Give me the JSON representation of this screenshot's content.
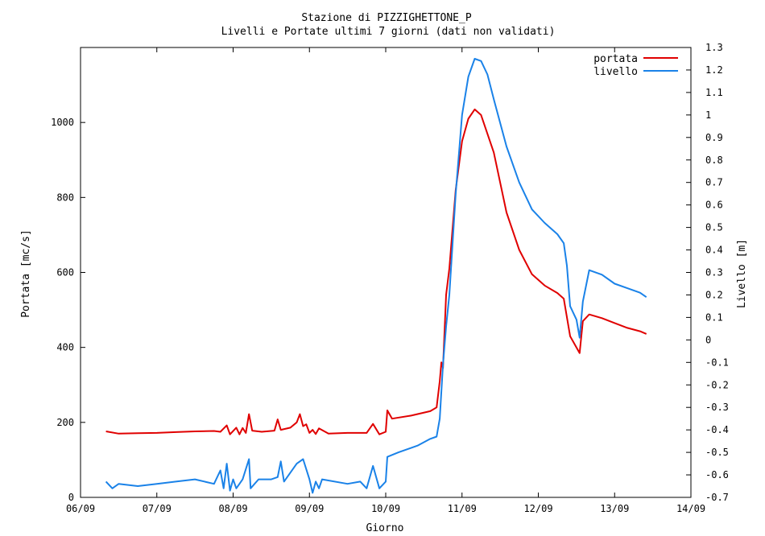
{
  "chart_data": {
    "type": "line",
    "title": "Stazione di PIZZIGHETTONE_P",
    "subtitle": "Livelli e Portate ultimi 7 giorni (dati non validati)",
    "xlabel": "Giorno",
    "ylabel": "Portata [mc/s]",
    "y2label": "Livello [m]",
    "x_ticks": [
      "06/09",
      "07/09",
      "08/09",
      "09/09",
      "10/09",
      "11/09",
      "12/09",
      "13/09",
      "14/09"
    ],
    "xlim": [
      "06/09 00:00",
      "14/09 00:00"
    ],
    "ylim": [
      0,
      1200
    ],
    "y_ticks": [
      0,
      200,
      400,
      600,
      800,
      1000
    ],
    "y2lim": [
      -0.7,
      1.3
    ],
    "y2_ticks": [
      "-0.7",
      "-0.6",
      "-0.5",
      "-0.4",
      "-0.3",
      "-0.2",
      "-0.1",
      "0",
      "0.1",
      "0.2",
      "0.3",
      "0.4",
      "0.5",
      "0.6",
      "0.7",
      "0.8",
      "0.9",
      "1",
      "1.1",
      "1.2",
      "1.3"
    ],
    "grid": false,
    "legend_position": "top-right",
    "series": [
      {
        "name": "portata",
        "axis": "left",
        "color": "#e00000",
        "unit": "mc/s",
        "points": [
          [
            "06/09 08:00",
            176
          ],
          [
            "06/09 12:00",
            170
          ],
          [
            "06/09 18:00",
            171
          ],
          [
            "07/09 00:00",
            172
          ],
          [
            "07/09 06:00",
            174
          ],
          [
            "07/09 12:00",
            176
          ],
          [
            "07/09 18:00",
            177
          ],
          [
            "07/09 20:00",
            175
          ],
          [
            "07/09 22:00",
            192
          ],
          [
            "07/09 23:00",
            168
          ],
          [
            "08/09 01:00",
            186
          ],
          [
            "08/09 02:00",
            168
          ],
          [
            "08/09 03:00",
            185
          ],
          [
            "08/09 04:00",
            172
          ],
          [
            "08/09 05:00",
            222
          ],
          [
            "08/09 06:00",
            178
          ],
          [
            "08/09 09:00",
            175
          ],
          [
            "08/09 13:00",
            178
          ],
          [
            "08/09 14:00",
            208
          ],
          [
            "08/09 15:00",
            180
          ],
          [
            "08/09 18:00",
            186
          ],
          [
            "08/09 20:00",
            200
          ],
          [
            "08/09 21:00",
            222
          ],
          [
            "08/09 22:00",
            190
          ],
          [
            "08/09 23:00",
            195
          ],
          [
            "09/09 00:00",
            172
          ],
          [
            "09/09 01:00",
            180
          ],
          [
            "09/09 02:00",
            169
          ],
          [
            "09/09 03:00",
            184
          ],
          [
            "09/09 06:00",
            170
          ],
          [
            "09/09 12:00",
            172
          ],
          [
            "09/09 18:00",
            172
          ],
          [
            "09/09 20:00",
            196
          ],
          [
            "09/09 22:00",
            168
          ],
          [
            "10/09 00:00",
            175
          ],
          [
            "10/09 00:30",
            232
          ],
          [
            "10/09 02:00",
            210
          ],
          [
            "10/09 08:00",
            218
          ],
          [
            "10/09 14:00",
            230
          ],
          [
            "10/09 16:00",
            240
          ],
          [
            "10/09 17:00",
            310
          ],
          [
            "10/09 17:30",
            360
          ],
          [
            "10/09 18:00",
            345
          ],
          [
            "10/09 19:00",
            540
          ],
          [
            "10/09 20:00",
            610
          ],
          [
            "10/09 22:00",
            820
          ],
          [
            "11/09 00:00",
            950
          ],
          [
            "11/09 02:00",
            1010
          ],
          [
            "11/09 04:00",
            1035
          ],
          [
            "11/09 06:00",
            1020
          ],
          [
            "11/09 10:00",
            920
          ],
          [
            "11/09 14:00",
            760
          ],
          [
            "11/09 18:00",
            660
          ],
          [
            "11/09 22:00",
            595
          ],
          [
            "12/09 02:00",
            565
          ],
          [
            "12/09 06:00",
            545
          ],
          [
            "12/09 08:00",
            530
          ],
          [
            "12/09 10:00",
            430
          ],
          [
            "12/09 13:00",
            385
          ],
          [
            "12/09 14:00",
            470
          ],
          [
            "12/09 16:00",
            488
          ],
          [
            "12/09 20:00",
            478
          ],
          [
            "13/09 00:00",
            465
          ],
          [
            "13/09 04:00",
            452
          ],
          [
            "13/09 08:00",
            443
          ],
          [
            "13/09 10:00",
            436
          ]
        ]
      },
      {
        "name": "livello",
        "axis": "right",
        "color": "#1a82e8",
        "unit": "m",
        "points": [
          [
            "06/09 08:00",
            -0.63
          ],
          [
            "06/09 10:00",
            -0.66
          ],
          [
            "06/09 12:00",
            -0.64
          ],
          [
            "06/09 18:00",
            -0.65
          ],
          [
            "07/09 00:00",
            -0.64
          ],
          [
            "07/09 06:00",
            -0.63
          ],
          [
            "07/09 12:00",
            -0.62
          ],
          [
            "07/09 18:00",
            -0.64
          ],
          [
            "07/09 20:00",
            -0.58
          ],
          [
            "07/09 21:00",
            -0.66
          ],
          [
            "07/09 22:00",
            -0.55
          ],
          [
            "07/09 23:00",
            -0.67
          ],
          [
            "08/09 00:00",
            -0.62
          ],
          [
            "08/09 01:00",
            -0.66
          ],
          [
            "08/09 02:00",
            -0.64
          ],
          [
            "08/09 03:00",
            -0.62
          ],
          [
            "08/09 05:00",
            -0.53
          ],
          [
            "08/09 05:30",
            -0.66
          ],
          [
            "08/09 08:00",
            -0.62
          ],
          [
            "08/09 12:00",
            -0.62
          ],
          [
            "08/09 14:00",
            -0.61
          ],
          [
            "08/09 15:00",
            -0.54
          ],
          [
            "08/09 16:00",
            -0.63
          ],
          [
            "08/09 20:00",
            -0.55
          ],
          [
            "08/09 22:00",
            -0.53
          ],
          [
            "09/09 00:00",
            -0.62
          ],
          [
            "09/09 01:00",
            -0.68
          ],
          [
            "09/09 02:00",
            -0.63
          ],
          [
            "09/09 03:00",
            -0.66
          ],
          [
            "09/09 04:00",
            -0.62
          ],
          [
            "09/09 12:00",
            -0.64
          ],
          [
            "09/09 16:00",
            -0.63
          ],
          [
            "09/09 18:00",
            -0.66
          ],
          [
            "09/09 20:00",
            -0.56
          ],
          [
            "09/09 22:00",
            -0.66
          ],
          [
            "10/09 00:00",
            -0.63
          ],
          [
            "10/09 00:30",
            -0.52
          ],
          [
            "10/09 04:00",
            -0.5
          ],
          [
            "10/09 10:00",
            -0.47
          ],
          [
            "10/09 14:00",
            -0.44
          ],
          [
            "10/09 16:00",
            -0.43
          ],
          [
            "10/09 17:00",
            -0.35
          ],
          [
            "10/09 18:00",
            -0.11
          ],
          [
            "10/09 19:00",
            0.06
          ],
          [
            "10/09 20:00",
            0.2
          ],
          [
            "10/09 22:00",
            0.65
          ],
          [
            "11/09 00:00",
            1.0
          ],
          [
            "11/09 02:00",
            1.17
          ],
          [
            "11/09 04:00",
            1.25
          ],
          [
            "11/09 06:00",
            1.24
          ],
          [
            "11/09 08:00",
            1.18
          ],
          [
            "11/09 10:00",
            1.07
          ],
          [
            "11/09 14:00",
            0.86
          ],
          [
            "11/09 18:00",
            0.7
          ],
          [
            "11/09 22:00",
            0.58
          ],
          [
            "12/09 02:00",
            0.52
          ],
          [
            "12/09 06:00",
            0.47
          ],
          [
            "12/09 08:00",
            0.43
          ],
          [
            "12/09 09:00",
            0.33
          ],
          [
            "12/09 10:00",
            0.15
          ],
          [
            "12/09 12:00",
            0.09
          ],
          [
            "12/09 13:00",
            0.01
          ],
          [
            "12/09 14:00",
            0.17
          ],
          [
            "12/09 16:00",
            0.31
          ],
          [
            "12/09 20:00",
            0.29
          ],
          [
            "13/09 00:00",
            0.25
          ],
          [
            "13/09 04:00",
            0.23
          ],
          [
            "13/09 08:00",
            0.21
          ],
          [
            "13/09 10:00",
            0.19
          ]
        ]
      }
    ]
  }
}
